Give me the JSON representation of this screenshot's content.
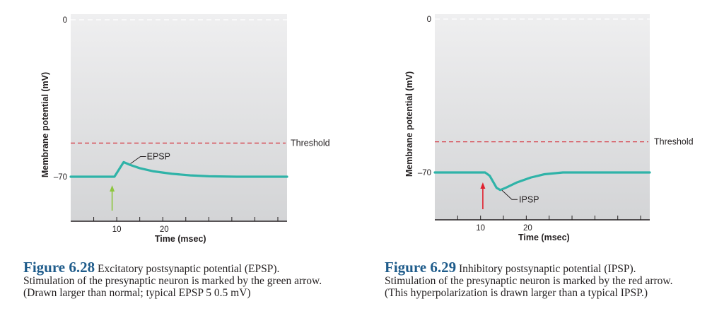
{
  "chart_data": [
    {
      "type": "line",
      "title": "Excitatory postsynaptic potential (EPSP)",
      "xlabel": "Time (msec)",
      "ylabel": "Membrane potential (mV)",
      "xlim": [
        0,
        47
      ],
      "ylim": [
        -90,
        2
      ],
      "x_tick_labels": [
        {
          "x": 10,
          "label": "10"
        },
        {
          "x": 20,
          "label": "20"
        }
      ],
      "x_ticks": [
        5,
        10,
        15,
        20,
        25,
        30,
        35,
        40,
        45
      ],
      "y_tick_labels": [
        {
          "y": 0,
          "label": "0"
        },
        {
          "y": -70,
          "label": "–70"
        }
      ],
      "zero_line": 0,
      "threshold": {
        "value": -55,
        "label": "Threshold",
        "color": "#d6404a"
      },
      "series": [
        {
          "name": "EPSP",
          "color": "#2fb3a8",
          "points": [
            [
              0,
              -70
            ],
            [
              9.5,
              -70
            ],
            [
              11.5,
              -63.5
            ],
            [
              13,
              -64.8
            ],
            [
              15,
              -66.2
            ],
            [
              18,
              -67.6
            ],
            [
              22,
              -68.7
            ],
            [
              26,
              -69.4
            ],
            [
              30,
              -69.8
            ],
            [
              36,
              -70
            ],
            [
              47,
              -70
            ]
          ]
        }
      ],
      "annotation": {
        "label": "EPSP",
        "point": [
          13,
          -64.8
        ]
      },
      "stimulus_arrow": {
        "x": 9,
        "color": "#8dc63f",
        "direction": "up"
      }
    },
    {
      "type": "line",
      "title": "Inhibitory postsynaptic potential (IPSP)",
      "xlabel": "Time (msec)",
      "ylabel": "Membrane potential (mV)",
      "xlim": [
        0,
        47
      ],
      "ylim": [
        -91.5,
        2
      ],
      "x_tick_labels": [
        {
          "x": 10,
          "label": "10"
        },
        {
          "x": 20,
          "label": "20"
        }
      ],
      "x_ticks": [
        5,
        10,
        15,
        20,
        25,
        30,
        35,
        40,
        45
      ],
      "y_tick_labels": [
        {
          "y": 0,
          "label": "0"
        },
        {
          "y": -70,
          "label": "–70"
        }
      ],
      "zero_line": 0,
      "threshold": {
        "value": -56,
        "label": "Threshold",
        "color": "#d6404a"
      },
      "series": [
        {
          "name": "IPSP",
          "color": "#2fb3a8",
          "points": [
            [
              0,
              -70
            ],
            [
              11,
              -70
            ],
            [
              12,
              -71.5
            ],
            [
              13.5,
              -77
            ],
            [
              14.3,
              -78
            ],
            [
              15.5,
              -77
            ],
            [
              18,
              -74.5
            ],
            [
              21,
              -72.3
            ],
            [
              24,
              -70.8
            ],
            [
              28,
              -70
            ],
            [
              47,
              -70
            ]
          ]
        }
      ],
      "annotation": {
        "label": "IPSP",
        "point": [
          15,
          -77.5
        ]
      },
      "stimulus_arrow": {
        "x": 10.5,
        "color": "#e0202e",
        "direction": "up"
      }
    }
  ],
  "captions": [
    {
      "figure": "Figure 6.28",
      "line1": "Excitatory postsynaptic potential (EPSP).",
      "line2": "Stimulation of the presynaptic neuron is marked by the green arrow.",
      "line3": "(Drawn larger than normal; typical EPSP 5 0.5 mV)"
    },
    {
      "figure": "Figure 6.29",
      "line1": "Inhibitory postsynaptic potential (IPSP).",
      "line2": "Stimulation of the presynaptic neuron is marked by the red arrow.",
      "line3": "(This hyperpolarization is drawn larger than a typical IPSP.)"
    }
  ]
}
